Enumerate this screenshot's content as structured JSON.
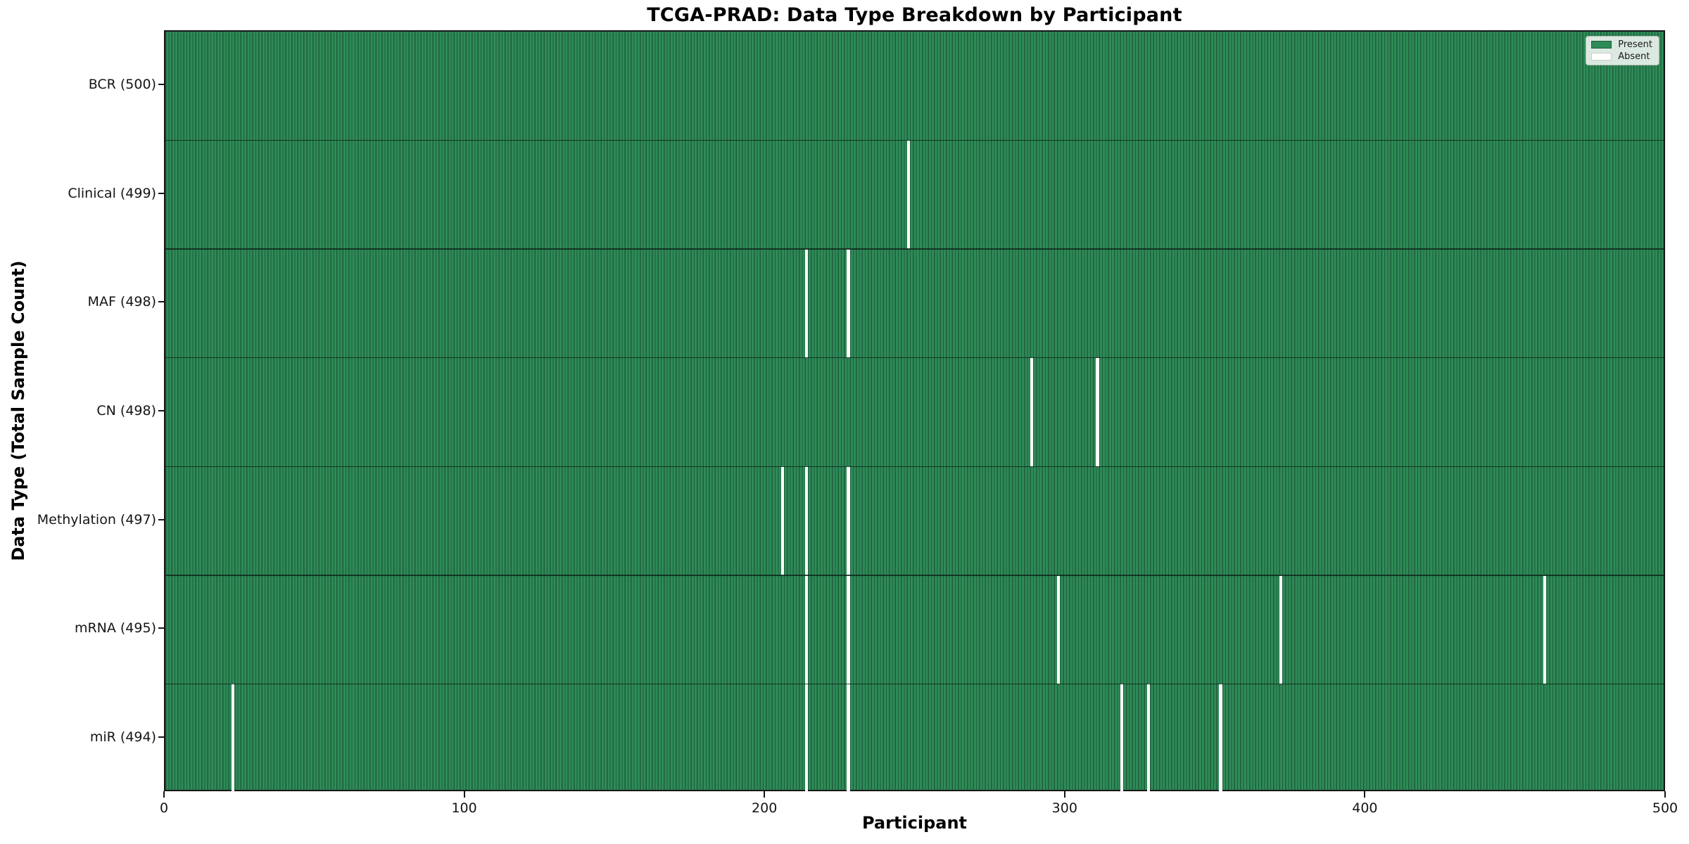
{
  "chart_data": {
    "type": "heatmap",
    "title": "TCGA-PRAD: Data Type Breakdown by Participant",
    "xlabel": "Participant",
    "ylabel": "Data Type (Total Sample Count)",
    "x_ticks": [
      0,
      100,
      200,
      300,
      400,
      500
    ],
    "x_range": [
      0,
      500
    ],
    "n_participants": 500,
    "grid": false,
    "legend": {
      "position": "upper right",
      "entries": [
        {
          "label": "Present",
          "color": "#2e8b57"
        },
        {
          "label": "Absent",
          "color": "#ffffff"
        }
      ]
    },
    "rows": [
      {
        "label": "BCR (500)",
        "data_type": "BCR",
        "total": 500,
        "absent_participants": []
      },
      {
        "label": "Clinical (499)",
        "data_type": "Clinical",
        "total": 499,
        "absent_participants": [
          247
        ]
      },
      {
        "label": "MAF (498)",
        "data_type": "MAF",
        "total": 498,
        "absent_participants": [
          213,
          227
        ]
      },
      {
        "label": "CN (498)",
        "data_type": "CN",
        "total": 498,
        "absent_participants": [
          288,
          310
        ]
      },
      {
        "label": "Methylation (497)",
        "data_type": "Methylation",
        "total": 497,
        "absent_participants": [
          205,
          213,
          227
        ]
      },
      {
        "label": "mRNA (495)",
        "data_type": "mRNA",
        "total": 495,
        "absent_participants": [
          213,
          227,
          297,
          371,
          459
        ]
      },
      {
        "label": "miR (494)",
        "data_type": "miR",
        "total": 494,
        "absent_participants": [
          22,
          213,
          227,
          318,
          327,
          351
        ]
      }
    ],
    "colors": {
      "present": "#2e8b57",
      "cell_edge": "#1e5e3c",
      "absent": "#ffffff",
      "row_border": "#0f281a",
      "axis": "#161616"
    }
  }
}
